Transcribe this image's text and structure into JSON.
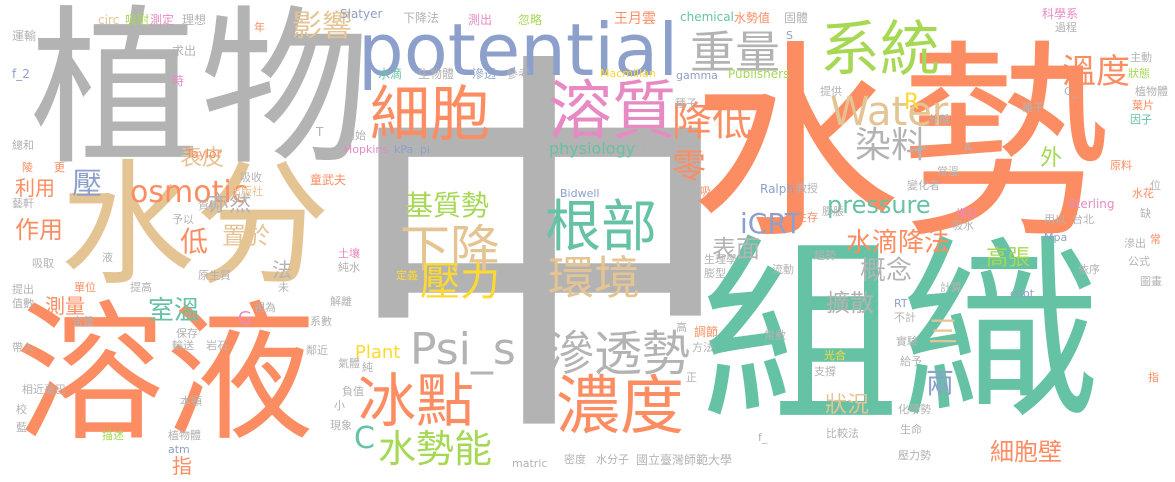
{
  "palette": {
    "gray": "#b3b3b3",
    "orange": "#fc8d62",
    "teal": "#66c2a5",
    "blue": "#8da0cb",
    "pink": "#e78ac3",
    "lime": "#a6d854",
    "yellow": "#ffd92f",
    "tan": "#e5c494"
  },
  "words": {
    "zhong": "中",
    "shui_shi": "水勢",
    "zhi_wu": "植物",
    "zu_zhi": "組織",
    "shui_fen": "水分",
    "rong_ye": "溶液",
    "potential": "potential",
    "xi_tong": "系統",
    "xi_bao": "細胞",
    "rong_zhi": "溶質",
    "zhong_liang": "重量",
    "jiang_di": "降低",
    "nong_du": "濃度",
    "bing_dian": "冰點",
    "shen_tou_shi": "滲透勢",
    "gen_bu": "根部",
    "huan_jing": "環境",
    "xia_jiang": "下降",
    "ya_li": "壓力",
    "ji_zhi_shi": "基質勢",
    "psi_s": "Psi_s",
    "shui_shi_neng": "水勢能",
    "water": "Water",
    "wen_du": "溫度",
    "ying_xiang": "影響",
    "osmotic": "osmotic",
    "ran_liao": "染料",
    "pressure": "pressure",
    "icrt": "iCRT",
    "shui_di_jiang_fa": "水滴降法",
    "gai_nian": "概念",
    "kuo_san": "擴散",
    "biao_mian": "表面",
    "xi_bao_bi": "細胞壁",
    "gao_zhang": "高張",
    "shi_wen": "室溫",
    "zuo_yong": "作用",
    "li_yong": "利用",
    "ce_liang": "測量",
    "zhi_yu": "置於",
    "yi_ran": "亦然",
    "di": "低",
    "biao_pi": "表皮",
    "physiology": "physiology",
    "plant": "Plant",
    "zhuang_kuang": "狀況",
    "ling": "零",
    "liang": "兩",
    "san": "三",
    "wai": "外",
    "ya": "壓",
    "zhi": "指",
    "fa": "法",
    "c_big": "C",
    "r_letter": "R",
    "g_letter": "G",
    "circ": "circ",
    "xi_fu": "吸附",
    "ce_ding": "測定",
    "li_xiang": "理想",
    "slatyer": "Slatyer",
    "xia_jiang_fa": "下降法",
    "ce_chu": "測出",
    "hu_lue": "忽略",
    "wang_yue_yun": "王月雲",
    "chemical": "chemical",
    "shui_shi_zhi": "水勢值",
    "gu_duan": "固體",
    "ke_xue_xi": "科學系",
    "guo_cheng": "過程",
    "yun_shu": "運輸",
    "qiu_chu": "求出",
    "shui_di": "水滴",
    "sheng_wu_ti": "生物體",
    "shen_tou": "滲透",
    "can_kao": "參考",
    "ji_jiu": "級",
    "macmillan": "Macmillan",
    "gamma": "gamma",
    "publishers": "Publishers",
    "zhu_dong": "主動",
    "f2": "f_2",
    "shi": "時",
    "zhong_zi": "種子",
    "li_zi": "離子",
    "zhuang_tai": "狀態",
    "ti_gong": "提供",
    "zhi_wu_2": "植物體",
    "ye_pian": "葉片",
    "yin_zi": "因子",
    "fen_xi": "分離",
    "chu_shi": "初始",
    "hopkins": "Hopkins",
    "kpa": "kPa",
    "pi": "pi",
    "zhi_shui": "指水",
    "zhuang_ren_yi": "莊仁奕",
    "zong_he": "總和",
    "taylor": "Taylor",
    "t_letter": "T",
    "ling_2": "陵",
    "geng": "更",
    "yuan_liao": "原料",
    "xi_shou": "吸收",
    "tong_wu_fu": "童武夫",
    "chu_ban_she": "出版社",
    "ralph": "Ralph",
    "xi": "吸",
    "jiao_shou": "教授",
    "bian_hua_zhe": "變化者",
    "chang_wen": "常溫",
    "zeng_ding": "增訂",
    "sterling": "Sterling",
    "shui_hua": "水花",
    "zi_liao": "資料",
    "yu_yi": "予以",
    "bidwell": "Bidwell",
    "sheng_cun": "生存",
    "peng_zhang": "膨脹",
    "xi_shui": "吸水",
    "yong_yi": "用以",
    "tai_bei": "台北",
    "que": "缺",
    "xi_qu": "吸取",
    "ye": "液",
    "tu_rang": "土壤",
    "chun_shui": "純水",
    "shi_2": "勢",
    "sheng_li_xue": "生理學",
    "peng_xing": "膨型",
    "qu_shi": "趨勢",
    "liu_dong": "流動",
    "mpa": "Mpa",
    "shen_chu": "滲出",
    "chang": "常",
    "gong_shi": "公式",
    "tu_hua": "圖畫",
    "yi_cun": "依序",
    "yi_zhan": "藝軒",
    "ti_chu": "提出",
    "dan_wei": "單位",
    "ti_gao": "提高",
    "yuan_sheng_zhi": "原生質",
    "ding_yi": "定義",
    "wei": "未",
    "ji_suan": "計算",
    "cdot": "cdot",
    "zhi_shu": "值數",
    "han_liang": "含量",
    "bao_cun": "保存",
    "shi_wei": "視為",
    "jie_xi": "解離",
    "xi_shu": "系數",
    "bu_ji": "不計",
    "rt": "RT",
    "tiao_jie": "調節",
    "fang_fa": "方法",
    "chang_shu": "常數",
    "shi_yan": "實驗",
    "ji_gei": "給予",
    "gao": "高",
    "dai_ru": "帶入",
    "shu_song": "輸送",
    "yan_shi": "岩石",
    "lin_jin": "鄰近",
    "qi_ti": "氣體",
    "chun": "純",
    "fu_zhi": "負值",
    "zheng": "正",
    "guang_he": "光合",
    "zhi_cheng": "支撐",
    "xiang_jin_hao_ba": "相近毫巴",
    "jiao": "校",
    "ben_pin": "本頓",
    "xian_xiang": "現象",
    "xiao": "小",
    "hua_xue_shi": "化學勢",
    "sheng_ming": "生命",
    "bi_jiao_fa": "比較法",
    "lan": "藍",
    "miao_shu": "描述",
    "zhi_wu_ti_3": "植物體",
    "atm": "atm",
    "matric": "matric",
    "mi_du": "密度",
    "shui_fen_zi": "水分子",
    "ntnu": "國立臺灣師範大學",
    "ya_li_shi": "壓力勢",
    "f_": "f_",
    "s_letter": "S",
    "a_letter": "A",
    "c_": "C_",
    "nian": "年",
    "wei_2": "位",
    "zhi_2": "指"
  }
}
